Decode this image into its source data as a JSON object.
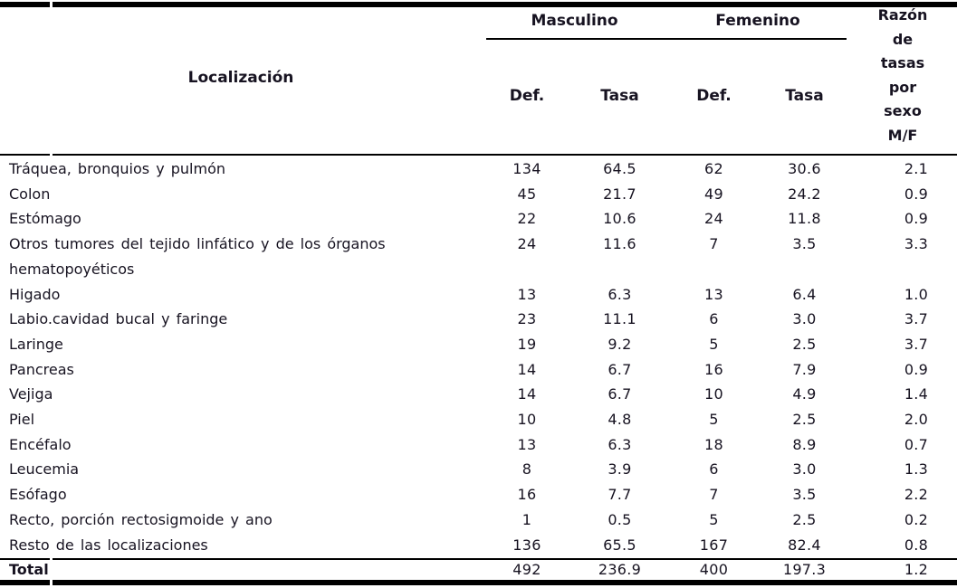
{
  "header": {
    "localizacion": "Localización",
    "group_male": "Masculino",
    "group_female": "Femenino",
    "sub_def_male": "Def.",
    "sub_tasa_male": "Tasa",
    "sub_def_female": "Def.",
    "sub_tasa_female": "Tasa",
    "ratio_label": "Razón\nde\ntasas\npor\nsexo\nM/F"
  },
  "table": {
    "rows": [
      {
        "label": "Tráquea, bronquios y pulmón",
        "def_m": "134",
        "tasa_m": "64.5",
        "def_f": "62",
        "tasa_f": "30.6",
        "razon": "2.1"
      },
      {
        "label": "Colon",
        "def_m": "45",
        "tasa_m": "21.7",
        "def_f": "49",
        "tasa_f": "24.2",
        "razon": "0.9"
      },
      {
        "label": "Estómago",
        "def_m": "22",
        "tasa_m": "10.6",
        "def_f": "24",
        "tasa_f": "11.8",
        "razon": "0.9"
      },
      {
        "label": "Otros tumores del tejido linfático y de los órganos\nhematopoyéticos",
        "def_m": "24",
        "tasa_m": "11.6",
        "def_f": "7",
        "tasa_f": "3.5",
        "razon": "3.3"
      },
      {
        "label": "Higado",
        "def_m": "13",
        "tasa_m": "6.3",
        "def_f": "13",
        "tasa_f": "6.4",
        "razon": "1.0"
      },
      {
        "label": "Labio.cavidad bucal y faringe",
        "def_m": "23",
        "tasa_m": "11.1",
        "def_f": "6",
        "tasa_f": "3.0",
        "razon": "3.7"
      },
      {
        "label": "Laringe",
        "def_m": "19",
        "tasa_m": "9.2",
        "def_f": "5",
        "tasa_f": "2.5",
        "razon": "3.7"
      },
      {
        "label": "Pancreas",
        "def_m": "14",
        "tasa_m": "6.7",
        "def_f": "16",
        "tasa_f": "7.9",
        "razon": "0.9"
      },
      {
        "label": "Vejiga",
        "def_m": "14",
        "tasa_m": "6.7",
        "def_f": "10",
        "tasa_f": "4.9",
        "razon": "1.4"
      },
      {
        "label": "Piel",
        "def_m": "10",
        "tasa_m": "4.8",
        "def_f": "5",
        "tasa_f": "2.5",
        "razon": "2.0"
      },
      {
        "label": "Encéfalo",
        "def_m": "13",
        "tasa_m": "6.3",
        "def_f": "18",
        "tasa_f": "8.9",
        "razon": "0.7"
      },
      {
        "label": "Leucemia",
        "def_m": "8",
        "tasa_m": "3.9",
        "def_f": "6",
        "tasa_f": "3.0",
        "razon": "1.3"
      },
      {
        "label": "Esófago",
        "def_m": "16",
        "tasa_m": "7.7",
        "def_f": "7",
        "tasa_f": "3.5",
        "razon": "2.2"
      },
      {
        "label": "Recto, porción rectosigmoide y ano",
        "def_m": "1",
        "tasa_m": "0.5",
        "def_f": "5",
        "tasa_f": "2.5",
        "razon": "0.2"
      },
      {
        "label": "Resto de las localizaciones",
        "def_m": "136",
        "tasa_m": "65.5",
        "def_f": "167",
        "tasa_f": "82.4",
        "razon": "0.8"
      }
    ],
    "total": {
      "label": "Total",
      "def_m": "492",
      "tasa_m": "236.9",
      "def_f": "400",
      "tasa_f": "197.3",
      "razon": "1.2"
    }
  },
  "colors": {
    "text": "#171321",
    "line": "#000000",
    "background": "#ffffff"
  }
}
